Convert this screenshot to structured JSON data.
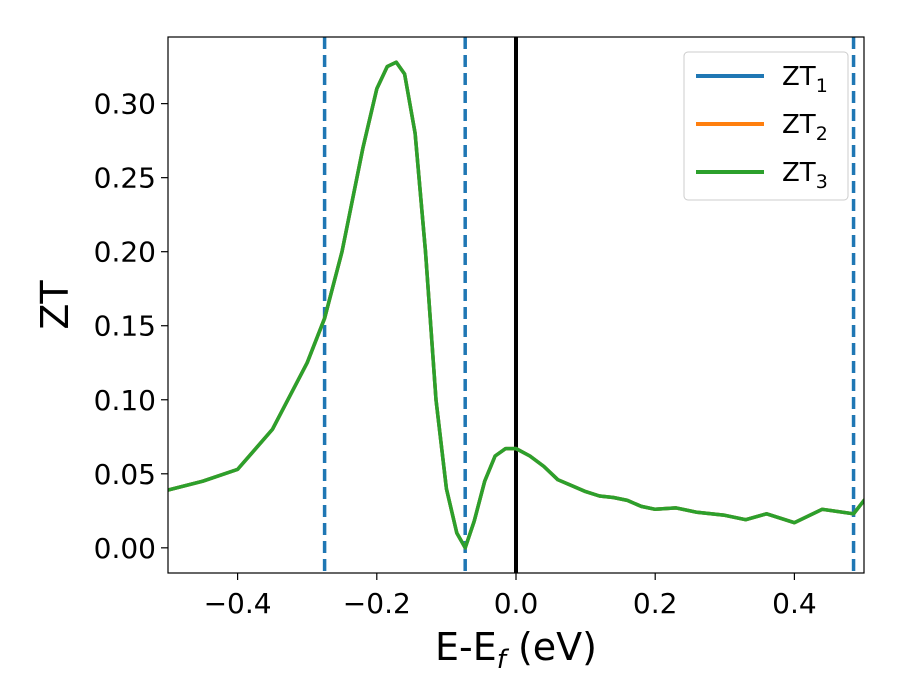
{
  "chart_data": {
    "type": "line",
    "xlabel": "E-E",
    "xlabel_sub": "f",
    "xlabel_unit": " (eV)",
    "ylabel": "ZT",
    "xlim": [
      -0.5,
      0.5
    ],
    "ylim": [
      -0.017,
      0.345
    ],
    "grid": false,
    "legend_position": "top-right",
    "x_ticks": [
      {
        "value": -0.4,
        "label": "−0.4"
      },
      {
        "value": -0.2,
        "label": "−0.2"
      },
      {
        "value": 0.0,
        "label": "0.0"
      },
      {
        "value": 0.2,
        "label": "0.2"
      },
      {
        "value": 0.4,
        "label": "0.4"
      }
    ],
    "y_ticks": [
      {
        "value": 0.0,
        "label": "0.00"
      },
      {
        "value": 0.05,
        "label": "0.05"
      },
      {
        "value": 0.1,
        "label": "0.10"
      },
      {
        "value": 0.15,
        "label": "0.15"
      },
      {
        "value": 0.2,
        "label": "0.20"
      },
      {
        "value": 0.25,
        "label": "0.25"
      },
      {
        "value": 0.3,
        "label": "0.30"
      }
    ],
    "vertical_lines": [
      {
        "x": -0.275,
        "style": "dashed",
        "color": "#1f77b4"
      },
      {
        "x": -0.073,
        "style": "dashed",
        "color": "#1f77b4"
      },
      {
        "x": 0.0,
        "style": "solid",
        "color": "#000000"
      },
      {
        "x": 0.485,
        "style": "dashed",
        "color": "#1f77b4"
      }
    ],
    "series": [
      {
        "name": "ZT",
        "sub": "1",
        "color": "#1f77b4",
        "points": "shared"
      },
      {
        "name": "ZT",
        "sub": "2",
        "color": "#ff7f0e",
        "points": "shared"
      },
      {
        "name": "ZT",
        "sub": "3",
        "color": "#2ca02c",
        "points": "shared"
      }
    ],
    "x": [
      -0.5,
      -0.45,
      -0.4,
      -0.35,
      -0.3,
      -0.275,
      -0.25,
      -0.22,
      -0.2,
      -0.185,
      -0.172,
      -0.16,
      -0.145,
      -0.13,
      -0.115,
      -0.1,
      -0.085,
      -0.073,
      -0.06,
      -0.045,
      -0.03,
      -0.015,
      0.0,
      0.02,
      0.04,
      0.06,
      0.08,
      0.1,
      0.12,
      0.14,
      0.16,
      0.18,
      0.2,
      0.23,
      0.26,
      0.3,
      0.33,
      0.36,
      0.4,
      0.44,
      0.485,
      0.5
    ],
    "y": [
      0.039,
      0.045,
      0.053,
      0.08,
      0.125,
      0.155,
      0.2,
      0.27,
      0.31,
      0.325,
      0.328,
      0.32,
      0.28,
      0.2,
      0.1,
      0.04,
      0.01,
      0.0,
      0.018,
      0.045,
      0.062,
      0.067,
      0.067,
      0.062,
      0.055,
      0.046,
      0.042,
      0.038,
      0.035,
      0.034,
      0.032,
      0.028,
      0.026,
      0.027,
      0.024,
      0.022,
      0.019,
      0.023,
      0.017,
      0.026,
      0.023,
      0.032
    ]
  }
}
